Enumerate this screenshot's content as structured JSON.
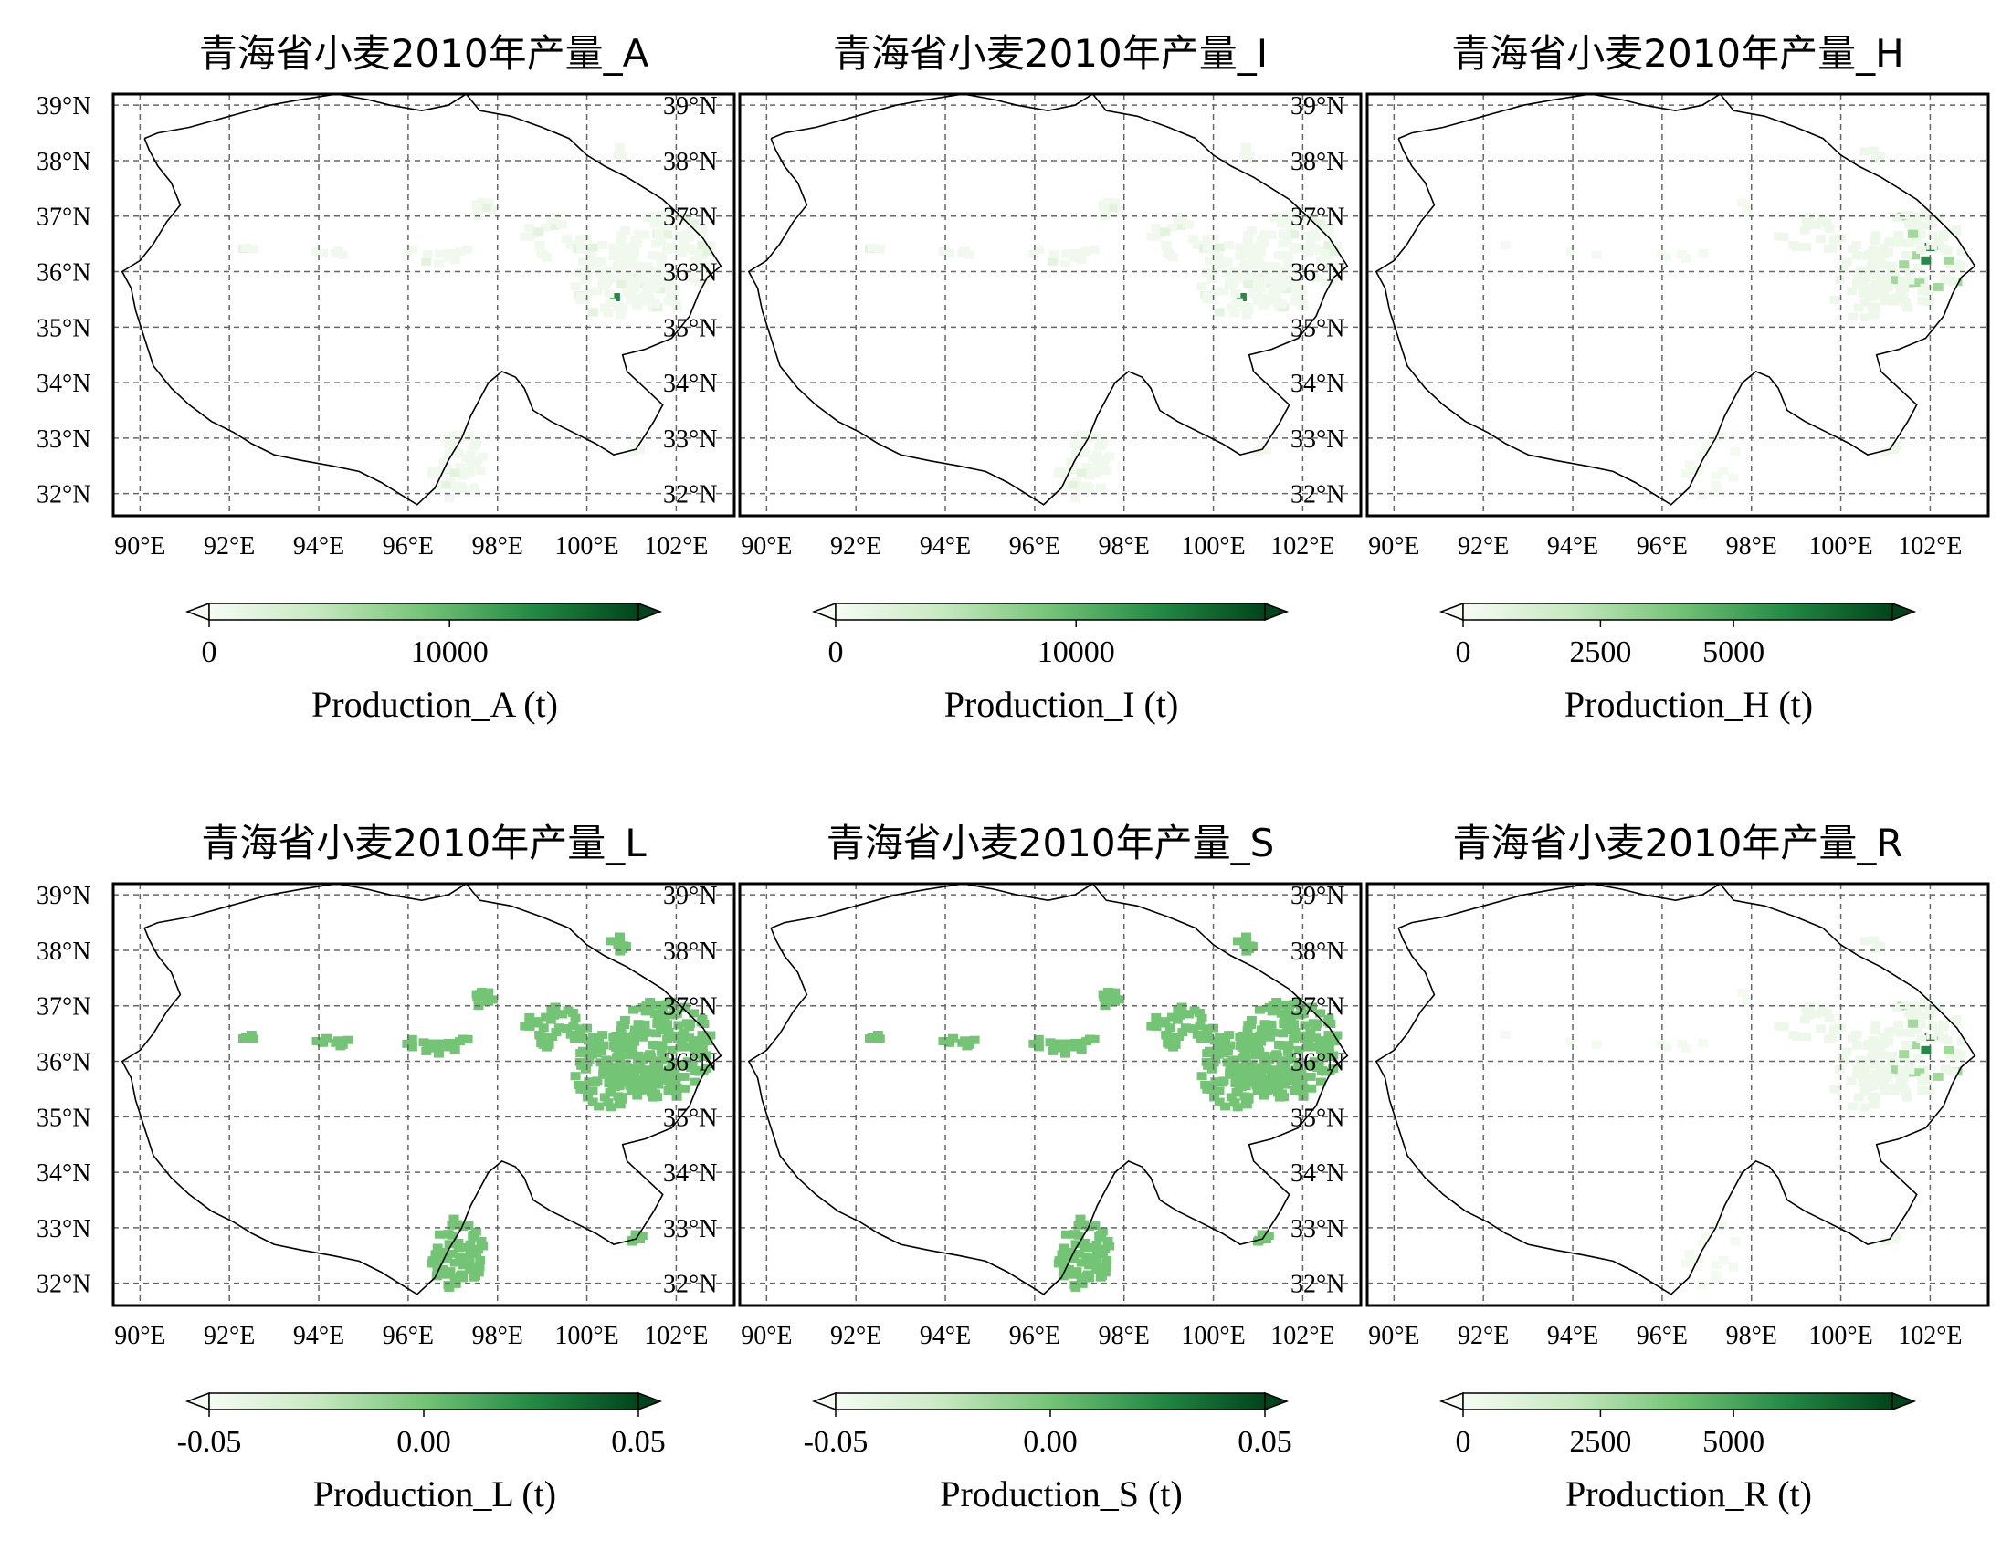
{
  "figure": {
    "lat_ticks": [
      "39°N",
      "38°N",
      "37°N",
      "36°N",
      "35°N",
      "34°N",
      "33°N",
      "32°N"
    ],
    "lon_ticks": [
      "90°E",
      "92°E",
      "94°E",
      "96°E",
      "98°E",
      "100°E",
      "102°E"
    ],
    "colormap": [
      "#f7fcf5",
      "#c7e9c0",
      "#74c476",
      "#238b45",
      "#00441b"
    ],
    "grid": "dashed",
    "colorbar_placement": "below each map",
    "colorbar_extend": "both"
  },
  "panels": [
    {
      "title": "青海省小麦2010年产量_A",
      "cbar_label": "Production_A (t)",
      "cbar_ticks": [
        "0",
        "10000"
      ],
      "pattern": "faint"
    },
    {
      "title": "青海省小麦2010年产量_I",
      "cbar_label": "Production_I (t)",
      "cbar_ticks": [
        "0",
        "10000"
      ],
      "pattern": "faint"
    },
    {
      "title": "青海省小麦2010年产量_H",
      "cbar_label": "Production_H (t)",
      "cbar_ticks": [
        "0",
        "2500",
        "5000"
      ],
      "pattern": "sparse-east"
    },
    {
      "title": "青海省小麦2010年产量_L",
      "cbar_label": "Production_L (t)",
      "cbar_ticks": [
        "-0.05",
        "0.00",
        "0.05"
      ],
      "pattern": "solid"
    },
    {
      "title": "青海省小麦2010年产量_S",
      "cbar_label": "Production_S (t)",
      "cbar_ticks": [
        "-0.05",
        "0.00",
        "0.05"
      ],
      "pattern": "solid"
    },
    {
      "title": "青海省小麦2010年产量_R",
      "cbar_label": "Production_R (t)",
      "cbar_ticks": [
        "0",
        "2500",
        "5000"
      ],
      "pattern": "sparse-east"
    }
  ]
}
